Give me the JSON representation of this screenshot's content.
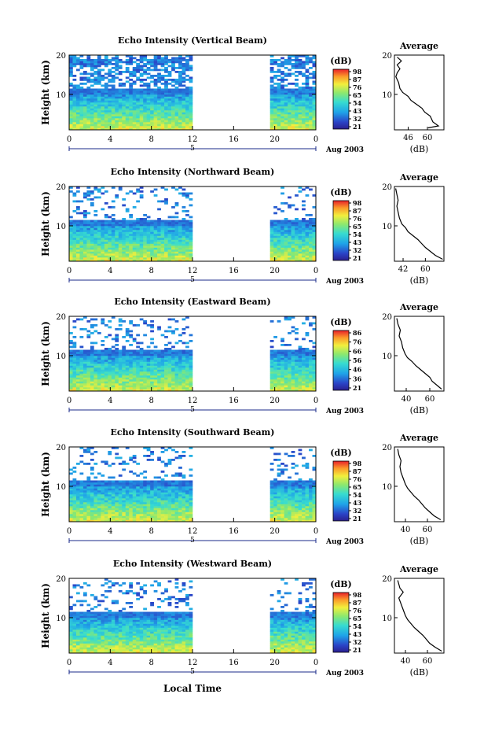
{
  "figure": {
    "xlabel": "Local Time",
    "date_label": "Aug 2003",
    "day_label": "5",
    "colorbar_unit": "(dB)",
    "avg_title": "Average",
    "avg_xlabel": "(dB)",
    "ylabel": "Height (km)"
  },
  "chart_data": [
    {
      "type": "heatmap",
      "title": "Echo Intensity (Vertical Beam)",
      "xlabel": "Local Time",
      "ylabel": "Height (km)",
      "x_ticks": [
        "0",
        "4",
        "8",
        "12",
        "16",
        "20",
        "0"
      ],
      "xlim": [
        0,
        24
      ],
      "y_ticks": [
        "20",
        "10"
      ],
      "ylim": [
        1,
        20
      ],
      "colorbar": {
        "label": "(dB)",
        "ticks": [
          "98",
          "87",
          "76",
          "65",
          "54",
          "43",
          "32",
          "21"
        ],
        "range": [
          21,
          98
        ]
      },
      "data_gaps_hours": [
        [
          12,
          19.5
        ]
      ],
      "average_profile": {
        "title": "Average",
        "xlabel": "(dB)",
        "x_ticks": [
          "46",
          "60"
        ],
        "xlim": [
          36,
          72
        ],
        "y_ticks": [
          "20",
          "10"
        ],
        "ylim": [
          1,
          20
        ],
        "points": [
          [
            60.5,
            1.5
          ],
          [
            68,
            2
          ],
          [
            64,
            3
          ],
          [
            62,
            4.5
          ],
          [
            58,
            5.5
          ],
          [
            56,
            6.5
          ],
          [
            52,
            7.5
          ],
          [
            48,
            8.5
          ],
          [
            46,
            9.5
          ],
          [
            42,
            10.5
          ],
          [
            40,
            11.5
          ],
          [
            39,
            13
          ],
          [
            37,
            14.5
          ],
          [
            38,
            15.5
          ],
          [
            40,
            16.5
          ],
          [
            38,
            17.5
          ],
          [
            41,
            18.5
          ],
          [
            38,
            19.5
          ]
        ]
      }
    },
    {
      "type": "heatmap",
      "title": "Echo Intensity (Northward Beam)",
      "xlabel": "Local Time",
      "ylabel": "Height (km)",
      "x_ticks": [
        "0",
        "4",
        "8",
        "12",
        "16",
        "20",
        "0"
      ],
      "xlim": [
        0,
        24
      ],
      "y_ticks": [
        "20",
        "10"
      ],
      "ylim": [
        1,
        20
      ],
      "colorbar": {
        "label": "(dB)",
        "ticks": [
          "98",
          "87",
          "76",
          "65",
          "54",
          "43",
          "32",
          "21"
        ],
        "range": [
          21,
          98
        ]
      },
      "data_gaps_hours": [
        [
          12,
          19.5
        ]
      ],
      "average_profile": {
        "title": "Average",
        "xlabel": "(dB)",
        "x_ticks": [
          "42",
          "60"
        ],
        "xlim": [
          35,
          75
        ],
        "y_ticks": [
          "20",
          "10"
        ],
        "ylim": [
          1,
          20
        ],
        "points": [
          [
            74,
            1.5
          ],
          [
            68,
            2.5
          ],
          [
            64,
            3.5
          ],
          [
            60,
            4.5
          ],
          [
            57,
            5.5
          ],
          [
            54,
            6.5
          ],
          [
            50,
            7.5
          ],
          [
            46,
            8.5
          ],
          [
            44,
            9.5
          ],
          [
            41,
            10.5
          ],
          [
            39,
            12
          ],
          [
            38,
            13.5
          ],
          [
            37,
            15
          ],
          [
            38,
            16.5
          ],
          [
            37,
            18
          ],
          [
            36,
            19.5
          ]
        ]
      }
    },
    {
      "type": "heatmap",
      "title": "Echo Intensity (Eastward Beam)",
      "xlabel": "Local Time",
      "ylabel": "Height (km)",
      "x_ticks": [
        "0",
        "4",
        "8",
        "12",
        "16",
        "20",
        "0"
      ],
      "xlim": [
        0,
        24
      ],
      "y_ticks": [
        "20",
        "10"
      ],
      "ylim": [
        1,
        20
      ],
      "colorbar": {
        "label": "(dB)",
        "ticks": [
          "86",
          "76",
          "66",
          "56",
          "46",
          "36",
          "21"
        ],
        "range": [
          21,
          96
        ]
      },
      "data_gaps_hours": [
        [
          12,
          19.5
        ]
      ],
      "average_profile": {
        "title": "Average",
        "xlabel": "(dB)",
        "x_ticks": [
          "40",
          "60"
        ],
        "xlim": [
          30,
          72
        ],
        "y_ticks": [
          "20",
          "10"
        ],
        "ylim": [
          1,
          20
        ],
        "points": [
          [
            70,
            1.5
          ],
          [
            66,
            2.5
          ],
          [
            62,
            3.5
          ],
          [
            60,
            4.5
          ],
          [
            56,
            5.5
          ],
          [
            52,
            6.5
          ],
          [
            48,
            7.5
          ],
          [
            45,
            8.5
          ],
          [
            41,
            9.5
          ],
          [
            39,
            10.5
          ],
          [
            37,
            12
          ],
          [
            36,
            13.5
          ],
          [
            34,
            15
          ],
          [
            35,
            16.5
          ],
          [
            33,
            18
          ],
          [
            32,
            19.5
          ]
        ]
      }
    },
    {
      "type": "heatmap",
      "title": "Echo Intensity (Southward Beam)",
      "xlabel": "Local Time",
      "ylabel": "Height (km)",
      "x_ticks": [
        "0",
        "4",
        "8",
        "12",
        "16",
        "20",
        "0"
      ],
      "xlim": [
        0,
        24
      ],
      "y_ticks": [
        "20",
        "10"
      ],
      "ylim": [
        1,
        20
      ],
      "colorbar": {
        "label": "(dB)",
        "ticks": [
          "98",
          "87",
          "76",
          "65",
          "54",
          "43",
          "32",
          "21"
        ],
        "range": [
          21,
          98
        ]
      },
      "data_gaps_hours": [
        [
          12,
          19.5
        ]
      ],
      "average_profile": {
        "title": "Average",
        "xlabel": "(dB)",
        "x_ticks": [
          "40",
          "60"
        ],
        "xlim": [
          30,
          75
        ],
        "y_ticks": [
          "20",
          "10"
        ],
        "ylim": [
          1,
          20
        ],
        "points": [
          [
            72,
            1.5
          ],
          [
            66,
            2.5
          ],
          [
            62,
            3.5
          ],
          [
            58,
            4.5
          ],
          [
            55,
            5.5
          ],
          [
            52,
            6.5
          ],
          [
            48,
            7.5
          ],
          [
            45,
            8.5
          ],
          [
            42,
            9.5
          ],
          [
            40,
            10.5
          ],
          [
            38,
            12
          ],
          [
            36,
            13.5
          ],
          [
            35,
            15
          ],
          [
            36,
            16.5
          ],
          [
            34,
            18
          ],
          [
            33,
            19.5
          ]
        ]
      }
    },
    {
      "type": "heatmap",
      "title": "Echo Intensity (Westward Beam)",
      "xlabel": "Local Time",
      "ylabel": "Height (km)",
      "x_ticks": [
        "0",
        "4",
        "8",
        "12",
        "16",
        "20",
        "0"
      ],
      "xlim": [
        0,
        24
      ],
      "y_ticks": [
        "20",
        "10"
      ],
      "ylim": [
        1,
        20
      ],
      "colorbar": {
        "label": "(dB)",
        "ticks": [
          "98",
          "87",
          "76",
          "65",
          "54",
          "43",
          "32",
          "21"
        ],
        "range": [
          21,
          98
        ]
      },
      "data_gaps_hours": [
        [
          12,
          19.5
        ]
      ],
      "average_profile": {
        "title": "Average",
        "xlabel": "(dB)",
        "x_ticks": [
          "40",
          "60"
        ],
        "xlim": [
          30,
          75
        ],
        "y_ticks": [
          "20",
          "10"
        ],
        "ylim": [
          1,
          20
        ],
        "points": [
          [
            73,
            1.5
          ],
          [
            67,
            2.5
          ],
          [
            62,
            3.5
          ],
          [
            59,
            4.5
          ],
          [
            56,
            5.5
          ],
          [
            52,
            6.5
          ],
          [
            48,
            7.5
          ],
          [
            45,
            8.5
          ],
          [
            42,
            9.5
          ],
          [
            40,
            10.5
          ],
          [
            38,
            12
          ],
          [
            36,
            13.5
          ],
          [
            34,
            15
          ],
          [
            38,
            16.5
          ],
          [
            35,
            17.5
          ],
          [
            33,
            19.5
          ]
        ]
      }
    }
  ]
}
